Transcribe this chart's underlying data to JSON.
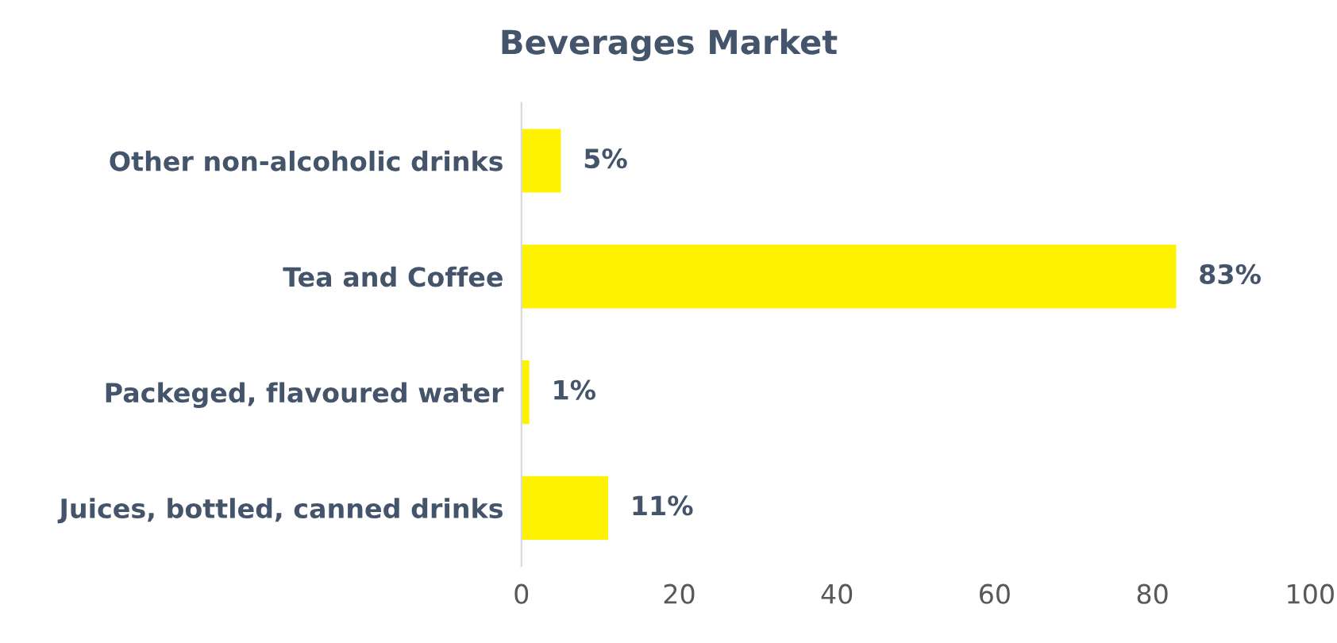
{
  "chart_data": {
    "type": "bar",
    "orientation": "horizontal",
    "title": "Beverages Market",
    "categories": [
      "Other non-alcoholic drinks",
      "Tea and Coffee",
      "Packeged, flavoured water",
      "Juices, bottled, canned drinks"
    ],
    "values": [
      5,
      83,
      1,
      11
    ],
    "value_labels": [
      "5%",
      "83%",
      "1%",
      "11%"
    ],
    "color": "#fff200",
    "xlim": [
      0,
      100
    ],
    "xticks": [
      0,
      20,
      40,
      60,
      80,
      100
    ],
    "grid": false,
    "legend": false
  }
}
